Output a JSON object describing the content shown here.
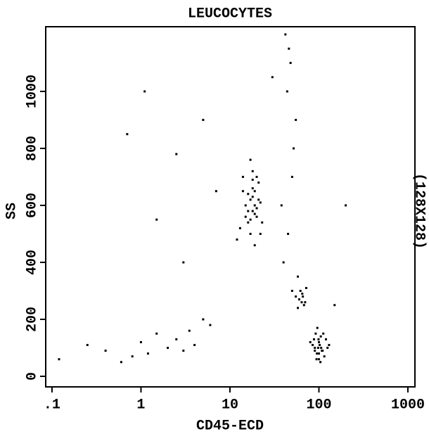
{
  "chart_data": {
    "type": "scatter",
    "title": "LEUCOCYTES",
    "x_label": "CD45-ECD",
    "y_label": "SS",
    "right_label": "(128X128)",
    "x_scale": "log",
    "color": "#000000",
    "xlim": [
      0.085,
      1200
    ],
    "xticks": [
      {
        "value": 0.1,
        "label": ".1"
      },
      1,
      10,
      100,
      1000
    ],
    "ylim": [
      -37,
      1227
    ],
    "yticks": [
      0,
      200,
      400,
      600,
      800,
      1000
    ],
    "x": [
      15,
      17,
      18,
      19,
      20,
      16,
      14,
      13,
      22,
      21,
      18,
      17,
      19,
      16,
      20,
      15,
      18,
      23,
      12,
      17,
      19,
      18,
      16,
      21,
      14,
      20,
      17,
      19,
      18,
      22,
      90,
      100,
      110,
      95,
      105,
      85,
      120,
      100,
      92,
      98,
      115,
      88,
      102,
      108,
      96,
      125,
      80,
      100,
      94,
      112,
      104,
      90,
      130,
      99,
      106,
      60,
      65,
      70,
      62,
      68,
      55,
      72,
      58,
      66,
      64,
      0.12,
      0.25,
      0.4,
      0.6,
      0.8,
      1,
      1.2,
      1.5,
      2,
      2.5,
      3,
      3.5,
      4,
      5,
      6,
      40,
      45,
      50,
      55,
      48,
      42,
      52,
      38,
      44,
      58,
      46,
      50,
      0.7,
      1.1,
      1.5,
      2.5,
      3,
      5,
      7,
      30,
      150,
      200
    ],
    "y": [
      600,
      620,
      580,
      650,
      560,
      540,
      700,
      520,
      610,
      680,
      720,
      500,
      600,
      640,
      590,
      560,
      660,
      540,
      480,
      760,
      460,
      630,
      580,
      620,
      650,
      700,
      550,
      570,
      690,
      500,
      100,
      120,
      90,
      80,
      140,
      110,
      130,
      60,
      150,
      100,
      70,
      130,
      110,
      90,
      170,
      100,
      120,
      80,
      60,
      150,
      50,
      90,
      110,
      130,
      100,
      270,
      290,
      260,
      300,
      250,
      280,
      310,
      240,
      280,
      260,
      60,
      110,
      90,
      50,
      70,
      120,
      80,
      150,
      100,
      130,
      90,
      160,
      110,
      200,
      180,
      400,
      500,
      700,
      900,
      1100,
      1200,
      800,
      600,
      1000,
      350,
      1150,
      300,
      850,
      1000,
      550,
      780,
      400,
      900,
      650,
      1050,
      250,
      600
    ]
  }
}
